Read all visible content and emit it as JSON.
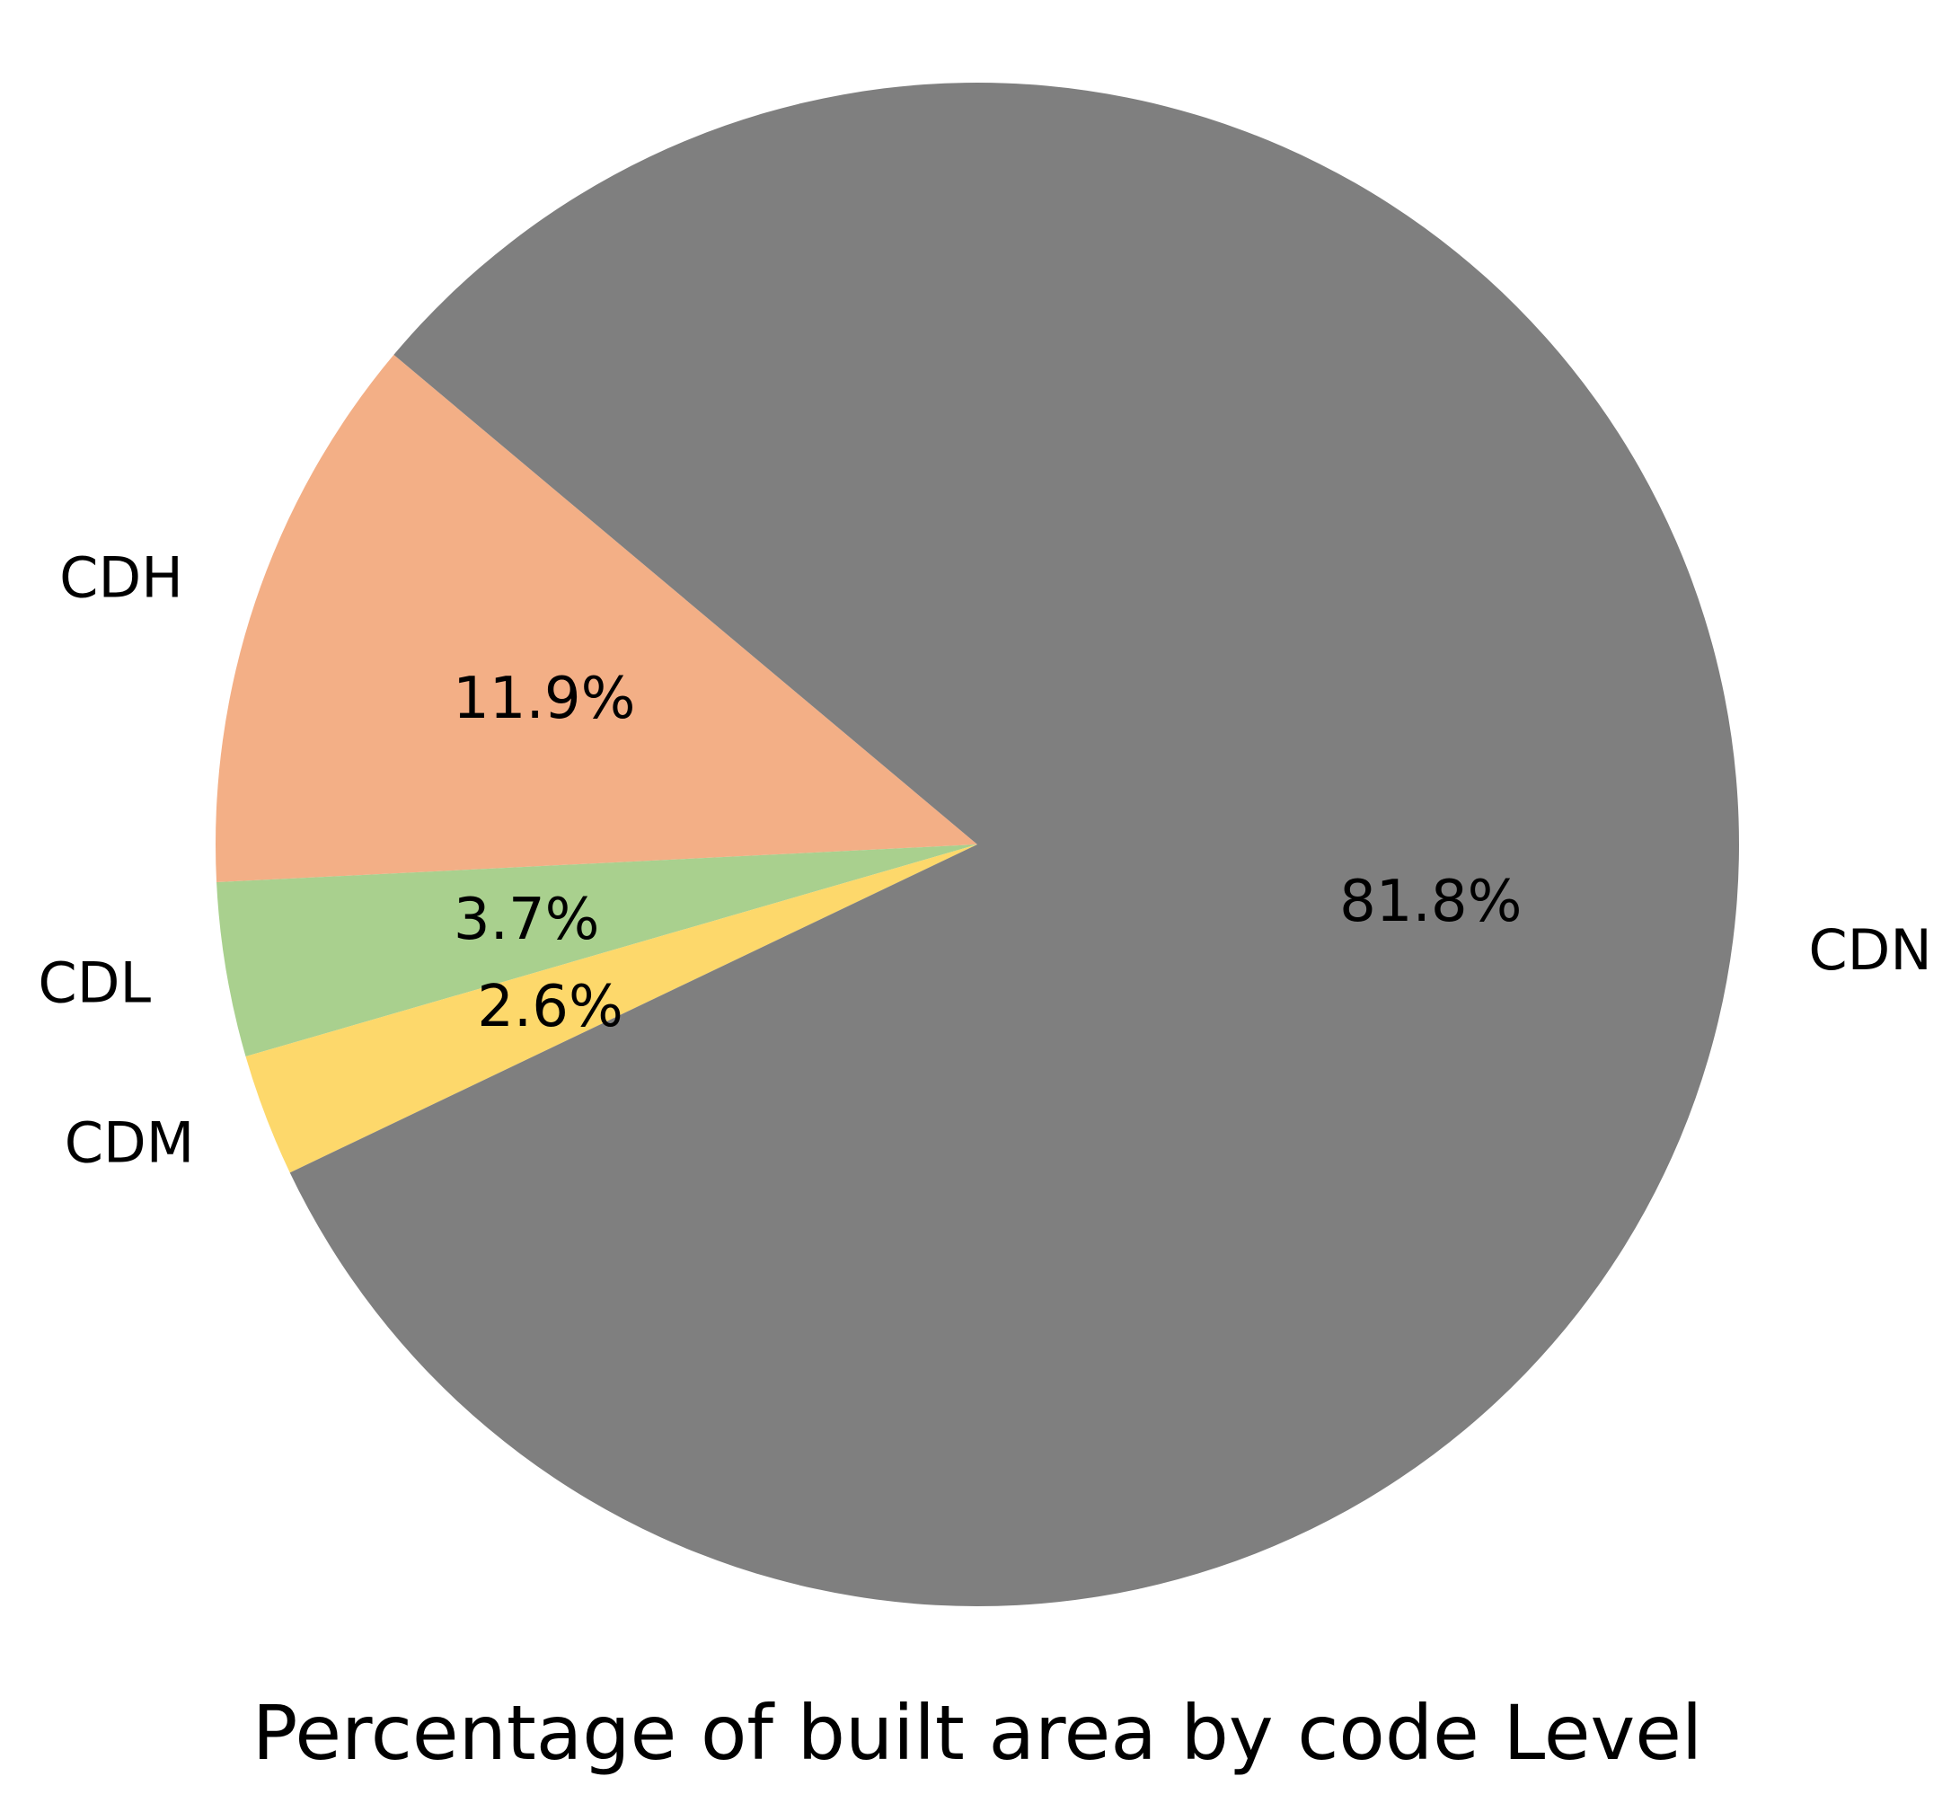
{
  "chart_data": {
    "type": "pie",
    "title": "Percentage of built area by code Level",
    "slices": [
      {
        "label": "CDH",
        "value": 11.9,
        "pct_label": "11.9%",
        "color": "#f3af86"
      },
      {
        "label": "CDL",
        "value": 3.7,
        "pct_label": "3.7%",
        "color": "#a9d08e"
      },
      {
        "label": "CDM",
        "value": 2.6,
        "pct_label": "2.6%",
        "color": "#fdd86b"
      },
      {
        "label": "CDN",
        "value": 81.8,
        "pct_label": "81.8%",
        "color": "#7f7f7f"
      }
    ]
  }
}
